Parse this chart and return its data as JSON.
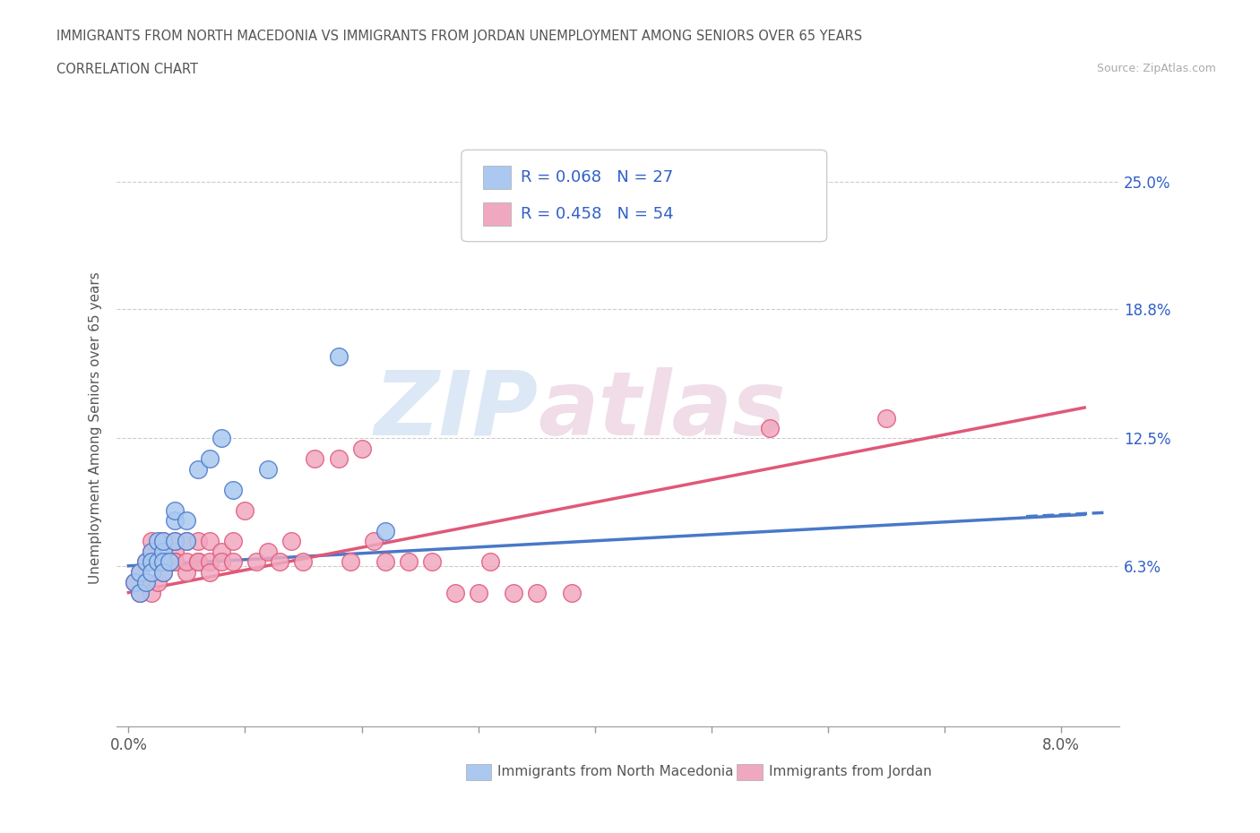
{
  "title_line1": "IMMIGRANTS FROM NORTH MACEDONIA VS IMMIGRANTS FROM JORDAN UNEMPLOYMENT AMONG SENIORS OVER 65 YEARS",
  "title_line2": "CORRELATION CHART",
  "source_text": "Source: ZipAtlas.com",
  "ylabel": "Unemployment Among Seniors over 65 years",
  "y_ticks": [
    0.0,
    0.063,
    0.125,
    0.188,
    0.25
  ],
  "y_tick_labels": [
    "",
    "6.3%",
    "12.5%",
    "18.8%",
    "25.0%"
  ],
  "x_ticks": [
    0.0,
    0.01,
    0.02,
    0.03,
    0.04,
    0.05,
    0.06,
    0.07,
    0.08
  ],
  "x_tick_labels": [
    "0.0%",
    "",
    "",
    "",
    "",
    "",
    "",
    "",
    "8.0%"
  ],
  "xlim": [
    -0.001,
    0.085
  ],
  "ylim": [
    -0.015,
    0.275
  ],
  "legend_r1": "R = 0.068",
  "legend_n1": "N = 27",
  "legend_r2": "R = 0.458",
  "legend_n2": "N = 54",
  "color_macedonia": "#aac8f0",
  "color_jordan": "#f0a8c0",
  "color_trend_macedonia": "#4878c8",
  "color_trend_jordan": "#e05878",
  "color_text_blue": "#3060c8",
  "color_grid": "#cccccc",
  "color_axis": "#999999",
  "watermark_zip_color": "#dce8f5",
  "watermark_atlas_color": "#f0dde8",
  "macedonia_x": [
    0.0005,
    0.001,
    0.001,
    0.0015,
    0.0015,
    0.002,
    0.002,
    0.002,
    0.0025,
    0.0025,
    0.003,
    0.003,
    0.003,
    0.003,
    0.0035,
    0.004,
    0.004,
    0.004,
    0.005,
    0.005,
    0.006,
    0.007,
    0.008,
    0.009,
    0.012,
    0.018,
    0.022
  ],
  "macedonia_y": [
    0.055,
    0.06,
    0.05,
    0.065,
    0.055,
    0.07,
    0.065,
    0.06,
    0.075,
    0.065,
    0.07,
    0.065,
    0.06,
    0.075,
    0.065,
    0.075,
    0.085,
    0.09,
    0.085,
    0.075,
    0.11,
    0.115,
    0.125,
    0.1,
    0.11,
    0.165,
    0.08
  ],
  "jordan_x": [
    0.0005,
    0.001,
    0.001,
    0.0015,
    0.0015,
    0.002,
    0.002,
    0.002,
    0.002,
    0.0025,
    0.0025,
    0.003,
    0.003,
    0.003,
    0.003,
    0.004,
    0.004,
    0.004,
    0.004,
    0.005,
    0.005,
    0.005,
    0.006,
    0.006,
    0.006,
    0.007,
    0.007,
    0.007,
    0.008,
    0.008,
    0.009,
    0.009,
    0.01,
    0.011,
    0.012,
    0.013,
    0.014,
    0.015,
    0.016,
    0.018,
    0.019,
    0.02,
    0.021,
    0.022,
    0.024,
    0.026,
    0.028,
    0.03,
    0.031,
    0.033,
    0.035,
    0.038,
    0.055,
    0.065
  ],
  "jordan_y": [
    0.055,
    0.06,
    0.05,
    0.065,
    0.055,
    0.07,
    0.065,
    0.05,
    0.075,
    0.065,
    0.055,
    0.065,
    0.075,
    0.06,
    0.065,
    0.07,
    0.075,
    0.065,
    0.065,
    0.06,
    0.075,
    0.065,
    0.065,
    0.075,
    0.065,
    0.065,
    0.06,
    0.075,
    0.07,
    0.065,
    0.075,
    0.065,
    0.09,
    0.065,
    0.07,
    0.065,
    0.075,
    0.065,
    0.115,
    0.115,
    0.065,
    0.12,
    0.075,
    0.065,
    0.065,
    0.065,
    0.05,
    0.05,
    0.065,
    0.05,
    0.05,
    0.05,
    0.13,
    0.135
  ],
  "trend_mac_x0": 0.0,
  "trend_mac_x1": 0.082,
  "trend_mac_y0": 0.063,
  "trend_mac_y1": 0.088,
  "trend_jor_x0": 0.0,
  "trend_jor_x1": 0.082,
  "trend_jor_y0": 0.05,
  "trend_jor_y1": 0.14
}
